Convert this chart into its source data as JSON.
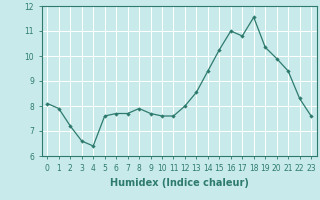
{
  "x": [
    0,
    1,
    2,
    3,
    4,
    5,
    6,
    7,
    8,
    9,
    10,
    11,
    12,
    13,
    14,
    15,
    16,
    17,
    18,
    19,
    20,
    21,
    22,
    23
  ],
  "y": [
    8.1,
    7.9,
    7.2,
    6.6,
    6.4,
    7.6,
    7.7,
    7.7,
    7.9,
    7.7,
    7.6,
    7.6,
    8.0,
    8.55,
    9.4,
    10.25,
    11.0,
    10.8,
    11.55,
    10.35,
    9.9,
    9.4,
    8.3,
    7.6
  ],
  "line_color": "#2e7b6e",
  "marker": "D",
  "marker_size": 2.2,
  "bg_color": "#c8eaea",
  "grid_color": "#ffffff",
  "xlabel": "Humidex (Indice chaleur)",
  "ylim": [
    6,
    12
  ],
  "xlim": [
    -0.5,
    23.5
  ],
  "yticks": [
    6,
    7,
    8,
    9,
    10,
    11,
    12
  ],
  "xticks": [
    0,
    1,
    2,
    3,
    4,
    5,
    6,
    7,
    8,
    9,
    10,
    11,
    12,
    13,
    14,
    15,
    16,
    17,
    18,
    19,
    20,
    21,
    22,
    23
  ],
  "tick_fontsize": 5.5,
  "xlabel_fontsize": 7,
  "xlabel_fontweight": "bold",
  "spine_color": "#2e7b6e"
}
